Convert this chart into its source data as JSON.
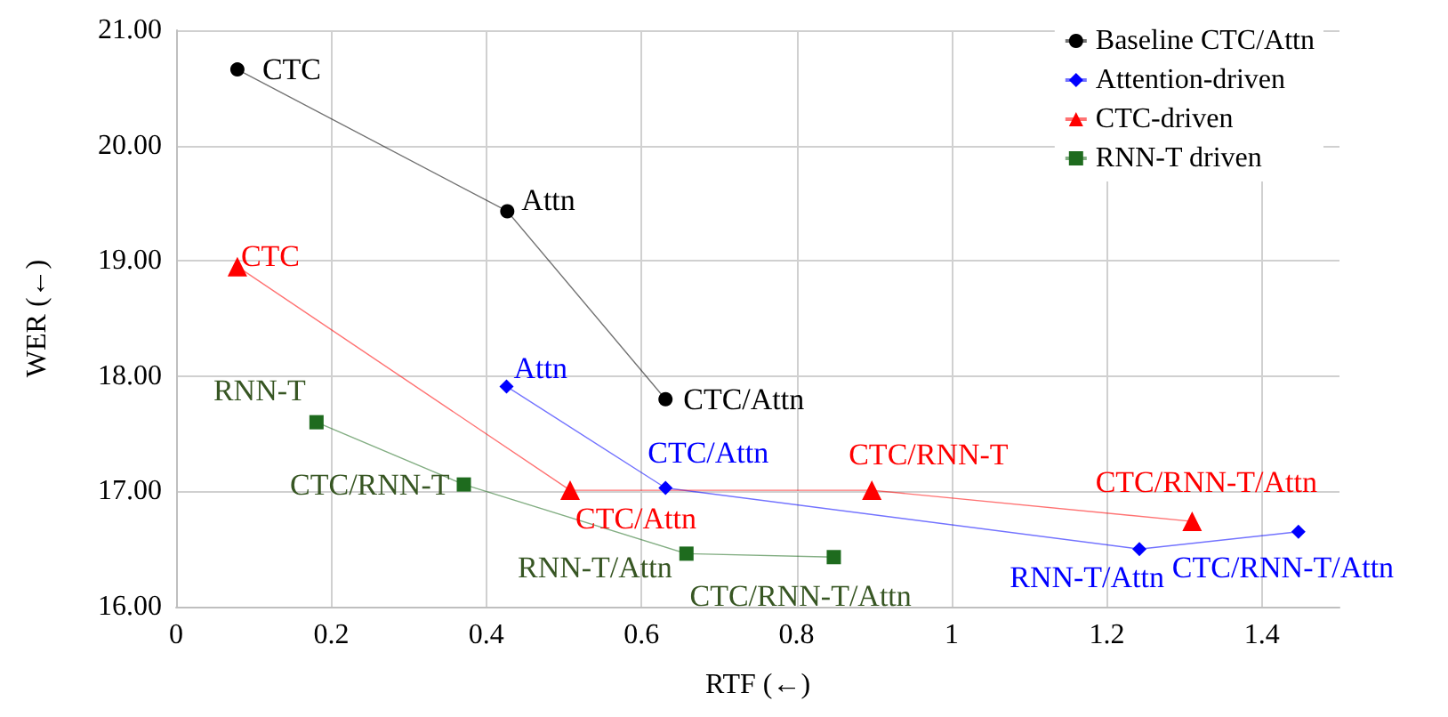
{
  "chart_data": {
    "type": "line",
    "xlabel": "RTF (←)",
    "ylabel": "WER (←)",
    "xlim": [
      0,
      1.5
    ],
    "ylim": [
      16,
      21
    ],
    "xticks": [
      0,
      0.2,
      0.4,
      0.6,
      0.8,
      1,
      1.2,
      1.4
    ],
    "yticks": [
      {
        "value": 16,
        "label": "16.00"
      },
      {
        "value": 17,
        "label": "17.00"
      },
      {
        "value": 18,
        "label": "18.00"
      },
      {
        "value": 19,
        "label": "19.00"
      },
      {
        "value": 20,
        "label": "20.00"
      },
      {
        "value": 21,
        "label": "21.00"
      }
    ],
    "grid": true,
    "legend": "top right",
    "series": [
      {
        "name": "Baseline CTC/Attn",
        "color": "#000000",
        "marker": "circle",
        "x": [
          0.079,
          0.427,
          0.631
        ],
        "values": [
          20.66,
          19.43,
          17.8
        ]
      },
      {
        "name": "Attention-driven",
        "color": "#0000ff",
        "marker": "diamond",
        "x": [
          0.426,
          0.631,
          1.242,
          1.447
        ],
        "values": [
          17.91,
          17.03,
          16.5,
          16.65
        ]
      },
      {
        "name": "CTC-driven",
        "color": "#ff0000",
        "marker": "triangle",
        "x": [
          0.079,
          0.508,
          0.897,
          1.31
        ],
        "values": [
          18.95,
          17.01,
          17.01,
          16.74
        ]
      },
      {
        "name": "RNN-T driven",
        "color": "#1e6b1e",
        "marker": "square",
        "x": [
          0.181,
          0.371,
          0.658,
          0.848
        ],
        "values": [
          17.6,
          17.06,
          16.46,
          16.43
        ]
      }
    ],
    "annotations": [
      {
        "text": "CTC",
        "x": 0.079,
        "y": 20.66
      },
      {
        "text": "Attn",
        "x": 0.427,
        "y": 19.43
      },
      {
        "text": "CTC/Attn",
        "x": 0.631,
        "y": 17.8
      },
      {
        "text": "Attn",
        "x": 0.426,
        "y": 17.91
      },
      {
        "text": "CTC/Attn",
        "x": 0.631,
        "y": 17.03
      },
      {
        "text": "RNN-T/Attn",
        "x": 1.242,
        "y": 16.5
      },
      {
        "text": "CTC/RNN-T/Attn",
        "x": 1.447,
        "y": 16.65
      },
      {
        "text": "CTC",
        "x": 0.079,
        "y": 18.95
      },
      {
        "text": "CTC/Attn",
        "x": 0.508,
        "y": 17.01
      },
      {
        "text": "CTC/RNN-T",
        "x": 0.897,
        "y": 17.01
      },
      {
        "text": "CTC/RNN-T/Attn",
        "x": 1.31,
        "y": 16.74
      },
      {
        "text": "RNN-T",
        "x": 0.181,
        "y": 17.6
      },
      {
        "text": "CTC/RNN-T",
        "x": 0.371,
        "y": 17.06
      },
      {
        "text": "RNN-T/Attn",
        "x": 0.658,
        "y": 16.46
      },
      {
        "text": "CTC/RNN-T/Attn",
        "x": 0.848,
        "y": 16.43
      }
    ]
  }
}
